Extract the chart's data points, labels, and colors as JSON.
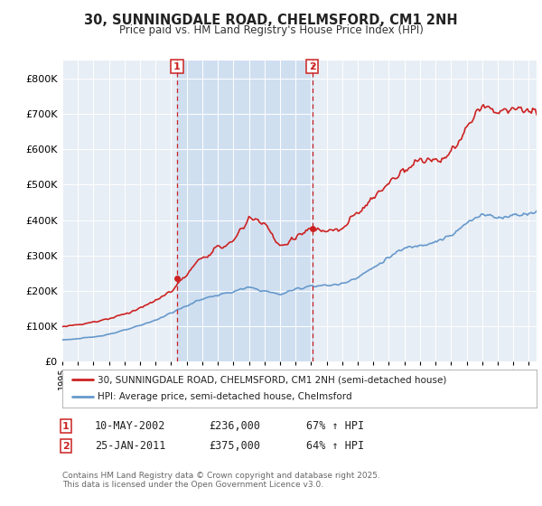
{
  "title": "30, SUNNINGDALE ROAD, CHELMSFORD, CM1 2NH",
  "subtitle": "Price paid vs. HM Land Registry's House Price Index (HPI)",
  "background_color": "#ffffff",
  "plot_bg_color": "#e8eef5",
  "grid_color": "#ffffff",
  "shade_color": "#d0dff0",
  "red_color": "#cc2222",
  "blue_color": "#6699cc",
  "legend_line1": "30, SUNNINGDALE ROAD, CHELMSFORD, CM1 2NH (semi-detached house)",
  "legend_line2": "HPI: Average price, semi-detached house, Chelmsford",
  "footer": "Contains HM Land Registry data © Crown copyright and database right 2025.\nThis data is licensed under the Open Government Licence v3.0.",
  "ylim": [
    0,
    850000
  ],
  "yticks": [
    0,
    100000,
    200000,
    300000,
    400000,
    500000,
    600000,
    700000,
    800000
  ],
  "marker1_x": 2002.37,
  "marker2_x": 2011.08,
  "sale1_price": 236000,
  "sale2_price": 375000,
  "xmin": 1995,
  "xmax": 2025.5
}
